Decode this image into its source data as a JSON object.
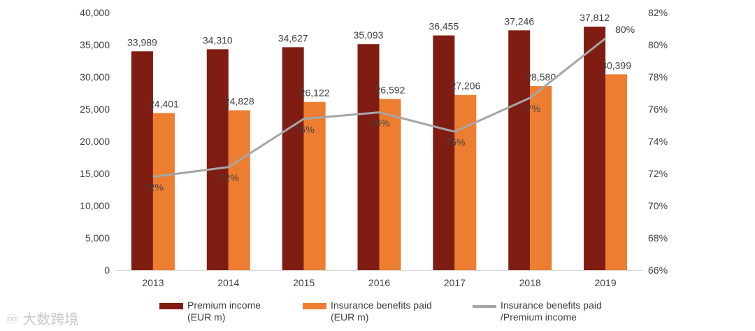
{
  "chart_data": {
    "type": "bar+line",
    "categories": [
      "2013",
      "2014",
      "2015",
      "2016",
      "2017",
      "2018",
      "2019"
    ],
    "series": [
      {
        "name": "Premium income (EUR m)",
        "legend_lines": [
          "Premium income",
          "(EUR m)"
        ],
        "kind": "bar",
        "axis": "left",
        "color": "#7f1d13",
        "values": [
          33989,
          34310,
          34627,
          35093,
          36455,
          37246,
          37812
        ],
        "labels": [
          "33,989",
          "34,310",
          "34,627",
          "35,093",
          "36,455",
          "37,246",
          "37,812"
        ]
      },
      {
        "name": "Insurance benefits paid (EUR m)",
        "legend_lines": [
          "Insurance benefits paid",
          "(EUR m)"
        ],
        "kind": "bar",
        "axis": "left",
        "color": "#ed7d31",
        "values": [
          24401,
          24828,
          26122,
          26592,
          27206,
          28580,
          30399
        ],
        "labels": [
          "24,401",
          "24,828",
          "26,122",
          "26,592",
          "27,206",
          "28,580",
          "30,399"
        ]
      },
      {
        "name": "Insurance benefits paid /Premium income",
        "legend_lines": [
          "Insurance benefits paid",
          "/Premium income"
        ],
        "kind": "line",
        "axis": "right",
        "color": "#a5a5a5",
        "values": [
          71.8,
          72.4,
          75.4,
          75.8,
          74.6,
          76.7,
          80.4
        ],
        "labels": [
          "72%",
          "72%",
          "75%",
          "76%",
          "75%",
          "77%",
          "80%"
        ]
      }
    ],
    "y_left": {
      "ylim": [
        0,
        40000
      ],
      "ticks": [
        0,
        5000,
        10000,
        15000,
        20000,
        25000,
        30000,
        35000,
        40000
      ],
      "tick_labels": [
        "0",
        "5,000",
        "10,000",
        "15,000",
        "20,000",
        "25,000",
        "30,000",
        "35,000",
        "40,000"
      ]
    },
    "y_right": {
      "ylim": [
        66,
        82
      ],
      "ticks": [
        66,
        68,
        70,
        72,
        74,
        76,
        78,
        80,
        82
      ],
      "tick_labels": [
        "66%",
        "68%",
        "70%",
        "72%",
        "74%",
        "76%",
        "78%",
        "80%",
        "82%"
      ]
    },
    "title": "",
    "xlabel": "",
    "ylabel": "",
    "grid": false,
    "legend_position": "bottom"
  },
  "watermark": "大数跨境"
}
